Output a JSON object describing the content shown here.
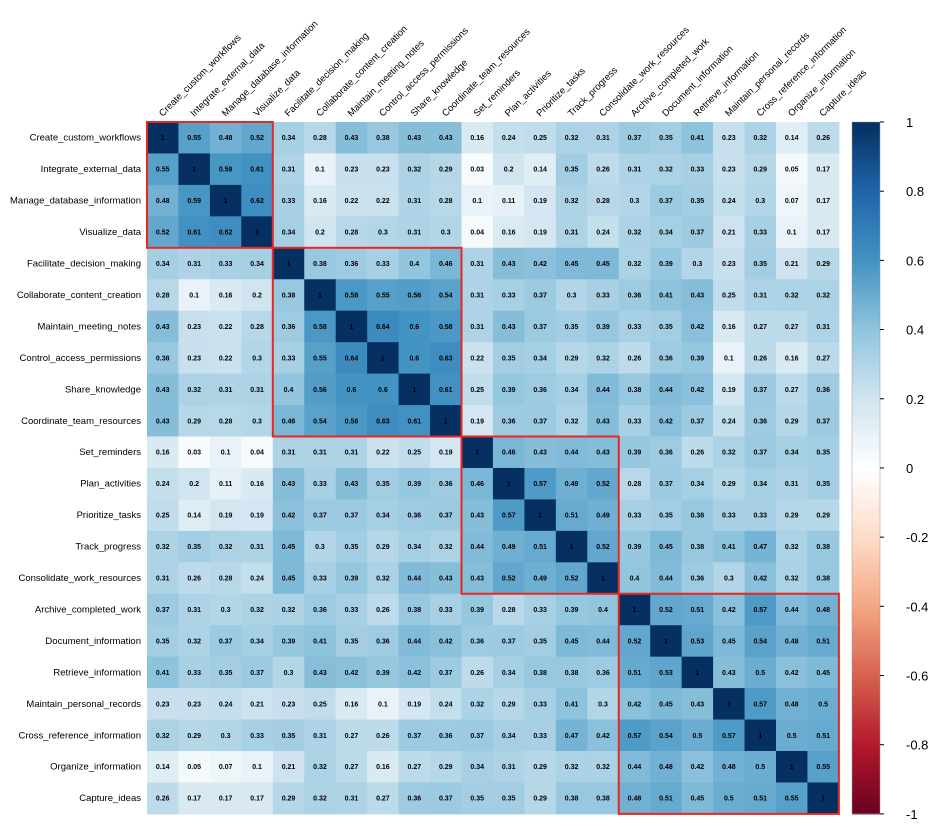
{
  "chart_data": {
    "type": "heatmap",
    "labels": [
      "Create_custom_workflows",
      "Integrate_external_data",
      "Manage_database_information",
      "Visualize_data",
      "Facilitate_decision_making",
      "Collaborate_content_creation",
      "Maintain_meeting_notes",
      "Control_access_permissions",
      "Share_knowledge",
      "Coordinate_team_resources",
      "Set_reminders",
      "Plan_activities",
      "Prioritize_tasks",
      "Track_progress",
      "Consolidate_work_resources",
      "Archive_completed_work",
      "Document_information",
      "Retrieve_information",
      "Maintain_personal_records",
      "Cross_reference_information",
      "Organize_information",
      "Capture_ideas"
    ],
    "matrix": [
      [
        1,
        0.55,
        0.48,
        0.52,
        0.34,
        0.28,
        0.43,
        0.38,
        0.43,
        0.43,
        0.16,
        0.24,
        0.25,
        0.32,
        0.31,
        0.37,
        0.35,
        0.41,
        0.23,
        0.32,
        0.14,
        0.26
      ],
      [
        0.55,
        1,
        0.59,
        0.61,
        0.31,
        0.1,
        0.23,
        0.23,
        0.32,
        0.29,
        0.03,
        0.2,
        0.14,
        0.35,
        0.26,
        0.31,
        0.32,
        0.33,
        0.23,
        0.29,
        0.05,
        0.17
      ],
      [
        0.48,
        0.59,
        1,
        0.62,
        0.33,
        0.16,
        0.22,
        0.22,
        0.31,
        0.28,
        0.1,
        0.11,
        0.19,
        0.32,
        0.28,
        0.3,
        0.37,
        0.35,
        0.24,
        0.3,
        0.07,
        0.17
      ],
      [
        0.52,
        0.61,
        0.62,
        1,
        0.34,
        0.2,
        0.28,
        0.3,
        0.31,
        0.3,
        0.04,
        0.16,
        0.19,
        0.31,
        0.24,
        0.32,
        0.34,
        0.37,
        0.21,
        0.33,
        0.1,
        0.17
      ],
      [
        0.34,
        0.31,
        0.33,
        0.34,
        1,
        0.38,
        0.36,
        0.33,
        0.4,
        0.46,
        0.31,
        0.43,
        0.42,
        0.45,
        0.45,
        0.32,
        0.39,
        0.3,
        0.23,
        0.35,
        0.21,
        0.29
      ],
      [
        0.28,
        0.1,
        0.16,
        0.2,
        0.38,
        1,
        0.58,
        0.55,
        0.56,
        0.54,
        0.31,
        0.33,
        0.37,
        0.3,
        0.33,
        0.36,
        0.41,
        0.43,
        0.25,
        0.31,
        0.32,
        0.32
      ],
      [
        0.43,
        0.23,
        0.22,
        0.28,
        0.36,
        0.58,
        1,
        0.64,
        0.6,
        0.58,
        0.31,
        0.43,
        0.37,
        0.35,
        0.39,
        0.33,
        0.35,
        0.42,
        0.16,
        0.27,
        0.27,
        0.31
      ],
      [
        0.38,
        0.23,
        0.22,
        0.3,
        0.33,
        0.55,
        0.64,
        1,
        0.6,
        0.63,
        0.22,
        0.35,
        0.34,
        0.29,
        0.32,
        0.26,
        0.36,
        0.39,
        0.1,
        0.26,
        0.16,
        0.27
      ],
      [
        0.43,
        0.32,
        0.31,
        0.31,
        0.4,
        0.56,
        0.6,
        0.6,
        1,
        0.61,
        0.25,
        0.39,
        0.36,
        0.34,
        0.44,
        0.38,
        0.44,
        0.42,
        0.19,
        0.37,
        0.27,
        0.36
      ],
      [
        0.43,
        0.29,
        0.28,
        0.3,
        0.46,
        0.54,
        0.58,
        0.63,
        0.61,
        1,
        0.19,
        0.36,
        0.37,
        0.32,
        0.43,
        0.33,
        0.42,
        0.37,
        0.24,
        0.36,
        0.29,
        0.37
      ],
      [
        0.16,
        0.03,
        0.1,
        0.04,
        0.31,
        0.31,
        0.31,
        0.22,
        0.25,
        0.19,
        1,
        0.46,
        0.43,
        0.44,
        0.43,
        0.39,
        0.36,
        0.26,
        0.32,
        0.37,
        0.34,
        0.35
      ],
      [
        0.24,
        0.2,
        0.11,
        0.16,
        0.43,
        0.33,
        0.43,
        0.35,
        0.39,
        0.36,
        0.46,
        1,
        0.57,
        0.49,
        0.52,
        0.28,
        0.37,
        0.34,
        0.29,
        0.34,
        0.31,
        0.35
      ],
      [
        0.25,
        0.14,
        0.19,
        0.19,
        0.42,
        0.37,
        0.37,
        0.34,
        0.36,
        0.37,
        0.43,
        0.57,
        1,
        0.51,
        0.49,
        0.33,
        0.35,
        0.38,
        0.33,
        0.33,
        0.29,
        0.29
      ],
      [
        0.32,
        0.35,
        0.32,
        0.31,
        0.45,
        0.3,
        0.35,
        0.29,
        0.34,
        0.32,
        0.44,
        0.49,
        0.51,
        1,
        0.52,
        0.39,
        0.45,
        0.38,
        0.41,
        0.47,
        0.32,
        0.38
      ],
      [
        0.31,
        0.26,
        0.28,
        0.24,
        0.45,
        0.33,
        0.39,
        0.32,
        0.44,
        0.43,
        0.43,
        0.52,
        0.49,
        0.52,
        1,
        0.4,
        0.44,
        0.36,
        0.3,
        0.42,
        0.32,
        0.38
      ],
      [
        0.37,
        0.31,
        0.3,
        0.32,
        0.32,
        0.36,
        0.33,
        0.26,
        0.38,
        0.33,
        0.39,
        0.28,
        0.33,
        0.39,
        0.4,
        1,
        0.52,
        0.51,
        0.42,
        0.57,
        0.44,
        0.48
      ],
      [
        0.35,
        0.32,
        0.37,
        0.34,
        0.39,
        0.41,
        0.35,
        0.36,
        0.44,
        0.42,
        0.36,
        0.37,
        0.35,
        0.45,
        0.44,
        0.52,
        1,
        0.53,
        0.45,
        0.54,
        0.48,
        0.51
      ],
      [
        0.41,
        0.33,
        0.35,
        0.37,
        0.3,
        0.43,
        0.42,
        0.39,
        0.42,
        0.37,
        0.26,
        0.34,
        0.38,
        0.38,
        0.36,
        0.51,
        0.53,
        1,
        0.43,
        0.5,
        0.42,
        0.45
      ],
      [
        0.23,
        0.23,
        0.24,
        0.21,
        0.23,
        0.25,
        0.16,
        0.1,
        0.19,
        0.24,
        0.32,
        0.29,
        0.33,
        0.41,
        0.3,
        0.42,
        0.45,
        0.43,
        1,
        0.57,
        0.48,
        0.5
      ],
      [
        0.32,
        0.29,
        0.3,
        0.33,
        0.35,
        0.31,
        0.27,
        0.26,
        0.37,
        0.36,
        0.37,
        0.34,
        0.33,
        0.47,
        0.42,
        0.57,
        0.54,
        0.5,
        0.57,
        1,
        0.5,
        0.51
      ],
      [
        0.14,
        0.05,
        0.07,
        0.1,
        0.21,
        0.32,
        0.27,
        0.16,
        0.27,
        0.29,
        0.34,
        0.31,
        0.29,
        0.32,
        0.32,
        0.44,
        0.48,
        0.42,
        0.48,
        0.5,
        1,
        0.55
      ],
      [
        0.26,
        0.17,
        0.17,
        0.17,
        0.29,
        0.32,
        0.31,
        0.27,
        0.36,
        0.37,
        0.35,
        0.35,
        0.29,
        0.38,
        0.38,
        0.48,
        0.51,
        0.45,
        0.5,
        0.51,
        0.55,
        1
      ]
    ],
    "clusters": [
      [
        0,
        3
      ],
      [
        4,
        9
      ],
      [
        10,
        14
      ],
      [
        15,
        21
      ]
    ],
    "cluster_outline_color": "#E8271E",
    "color_scale": {
      "range": [
        -1,
        1
      ],
      "ticks": [
        "1",
        "0.8",
        "0.6",
        "0.4",
        "0.2",
        "0",
        "-0.2",
        "-0.4",
        "-0.6",
        "-0.8",
        "-1"
      ],
      "palette": [
        "#67001F",
        "#B2182B",
        "#D6604D",
        "#F4A582",
        "#FDDBC7",
        "#FFFFFF",
        "#D1E5F0",
        "#92C5DE",
        "#4393C3",
        "#2166AC",
        "#053061"
      ]
    },
    "legend_placement": "right"
  }
}
